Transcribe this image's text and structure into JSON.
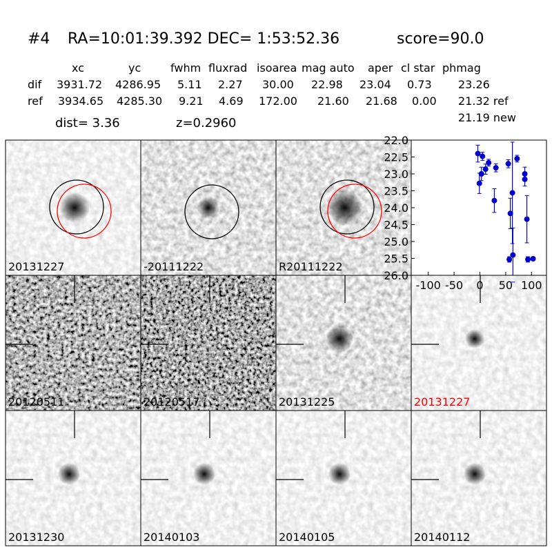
{
  "header": {
    "id": "#4",
    "coords": "RA=10:01:39.392 DEC= 1:53:52.36",
    "score": "score=90.0"
  },
  "table": {
    "columns": [
      "xc",
      "yc",
      "fwhm",
      "fluxrad",
      "isoarea",
      "mag auto",
      "aper",
      "cl star",
      "phmag"
    ],
    "rows": [
      [
        "dif",
        "3931.72",
        "4286.95",
        "5.11",
        "2.27",
        "30.00",
        "22.98",
        "23.04",
        "0.73",
        "23.26"
      ],
      [
        "ref",
        "3934.65",
        "4285.30",
        "9.21",
        "4.69",
        "172.00",
        "21.60",
        "21.68",
        "0.00",
        "21.32 ref"
      ]
    ],
    "extra": "21.19 new"
  },
  "info": {
    "dist": "dist=  3.36",
    "z": "z=0.2960"
  },
  "stamps": [
    {
      "label": "20131227"
    },
    {
      "label": "-20111222"
    },
    {
      "label": "R20111222"
    },
    {
      "label": "20120511"
    },
    {
      "label": "20120517"
    },
    {
      "label": "20131225"
    },
    {
      "label": "20131227",
      "label_color": "#ff0000"
    },
    {
      "label": "20131230"
    },
    {
      "label": "20140103"
    },
    {
      "label": "20140105"
    },
    {
      "label": "20140112"
    }
  ],
  "chart_data": {
    "type": "scatter",
    "color": "#0000cc",
    "x": [
      -4,
      -1,
      3,
      5,
      11,
      17,
      31,
      28,
      55,
      59,
      63,
      64,
      57,
      72,
      87,
      87,
      91,
      93,
      103
    ],
    "values": [
      22.4,
      23.28,
      23.0,
      22.48,
      22.86,
      22.67,
      22.82,
      23.79,
      22.7,
      24.17,
      23.56,
      25.4,
      25.53,
      22.55,
      23.0,
      23.16,
      24.34,
      25.53,
      25.51
    ],
    "errors": [
      0.25,
      0.3,
      0.2,
      0.12,
      0.15,
      0.1,
      0.12,
      0.35,
      0.12,
      0.45,
      1.5,
      0.8,
      0.08,
      0.1,
      0.2,
      0.2,
      0.7,
      0.08,
      0.05
    ],
    "xlim": [
      -133,
      129
    ],
    "ylim": [
      26,
      22
    ],
    "xticks": [
      -100,
      -50,
      0,
      50,
      100
    ],
    "yticks": [
      {
        "value": 22,
        "label": "22.0"
      },
      {
        "value": 22.5,
        "label": "22.5"
      },
      {
        "value": 23,
        "label": "23.0"
      },
      {
        "value": 23.5,
        "label": "23.5"
      },
      {
        "value": 24,
        "label": "24.0"
      },
      {
        "value": 24.5,
        "label": "24.5"
      },
      {
        "value": 25,
        "label": "25.0"
      },
      {
        "value": 25.5,
        "label": "25.5"
      },
      {
        "value": 26,
        "label": "26.0"
      }
    ]
  }
}
